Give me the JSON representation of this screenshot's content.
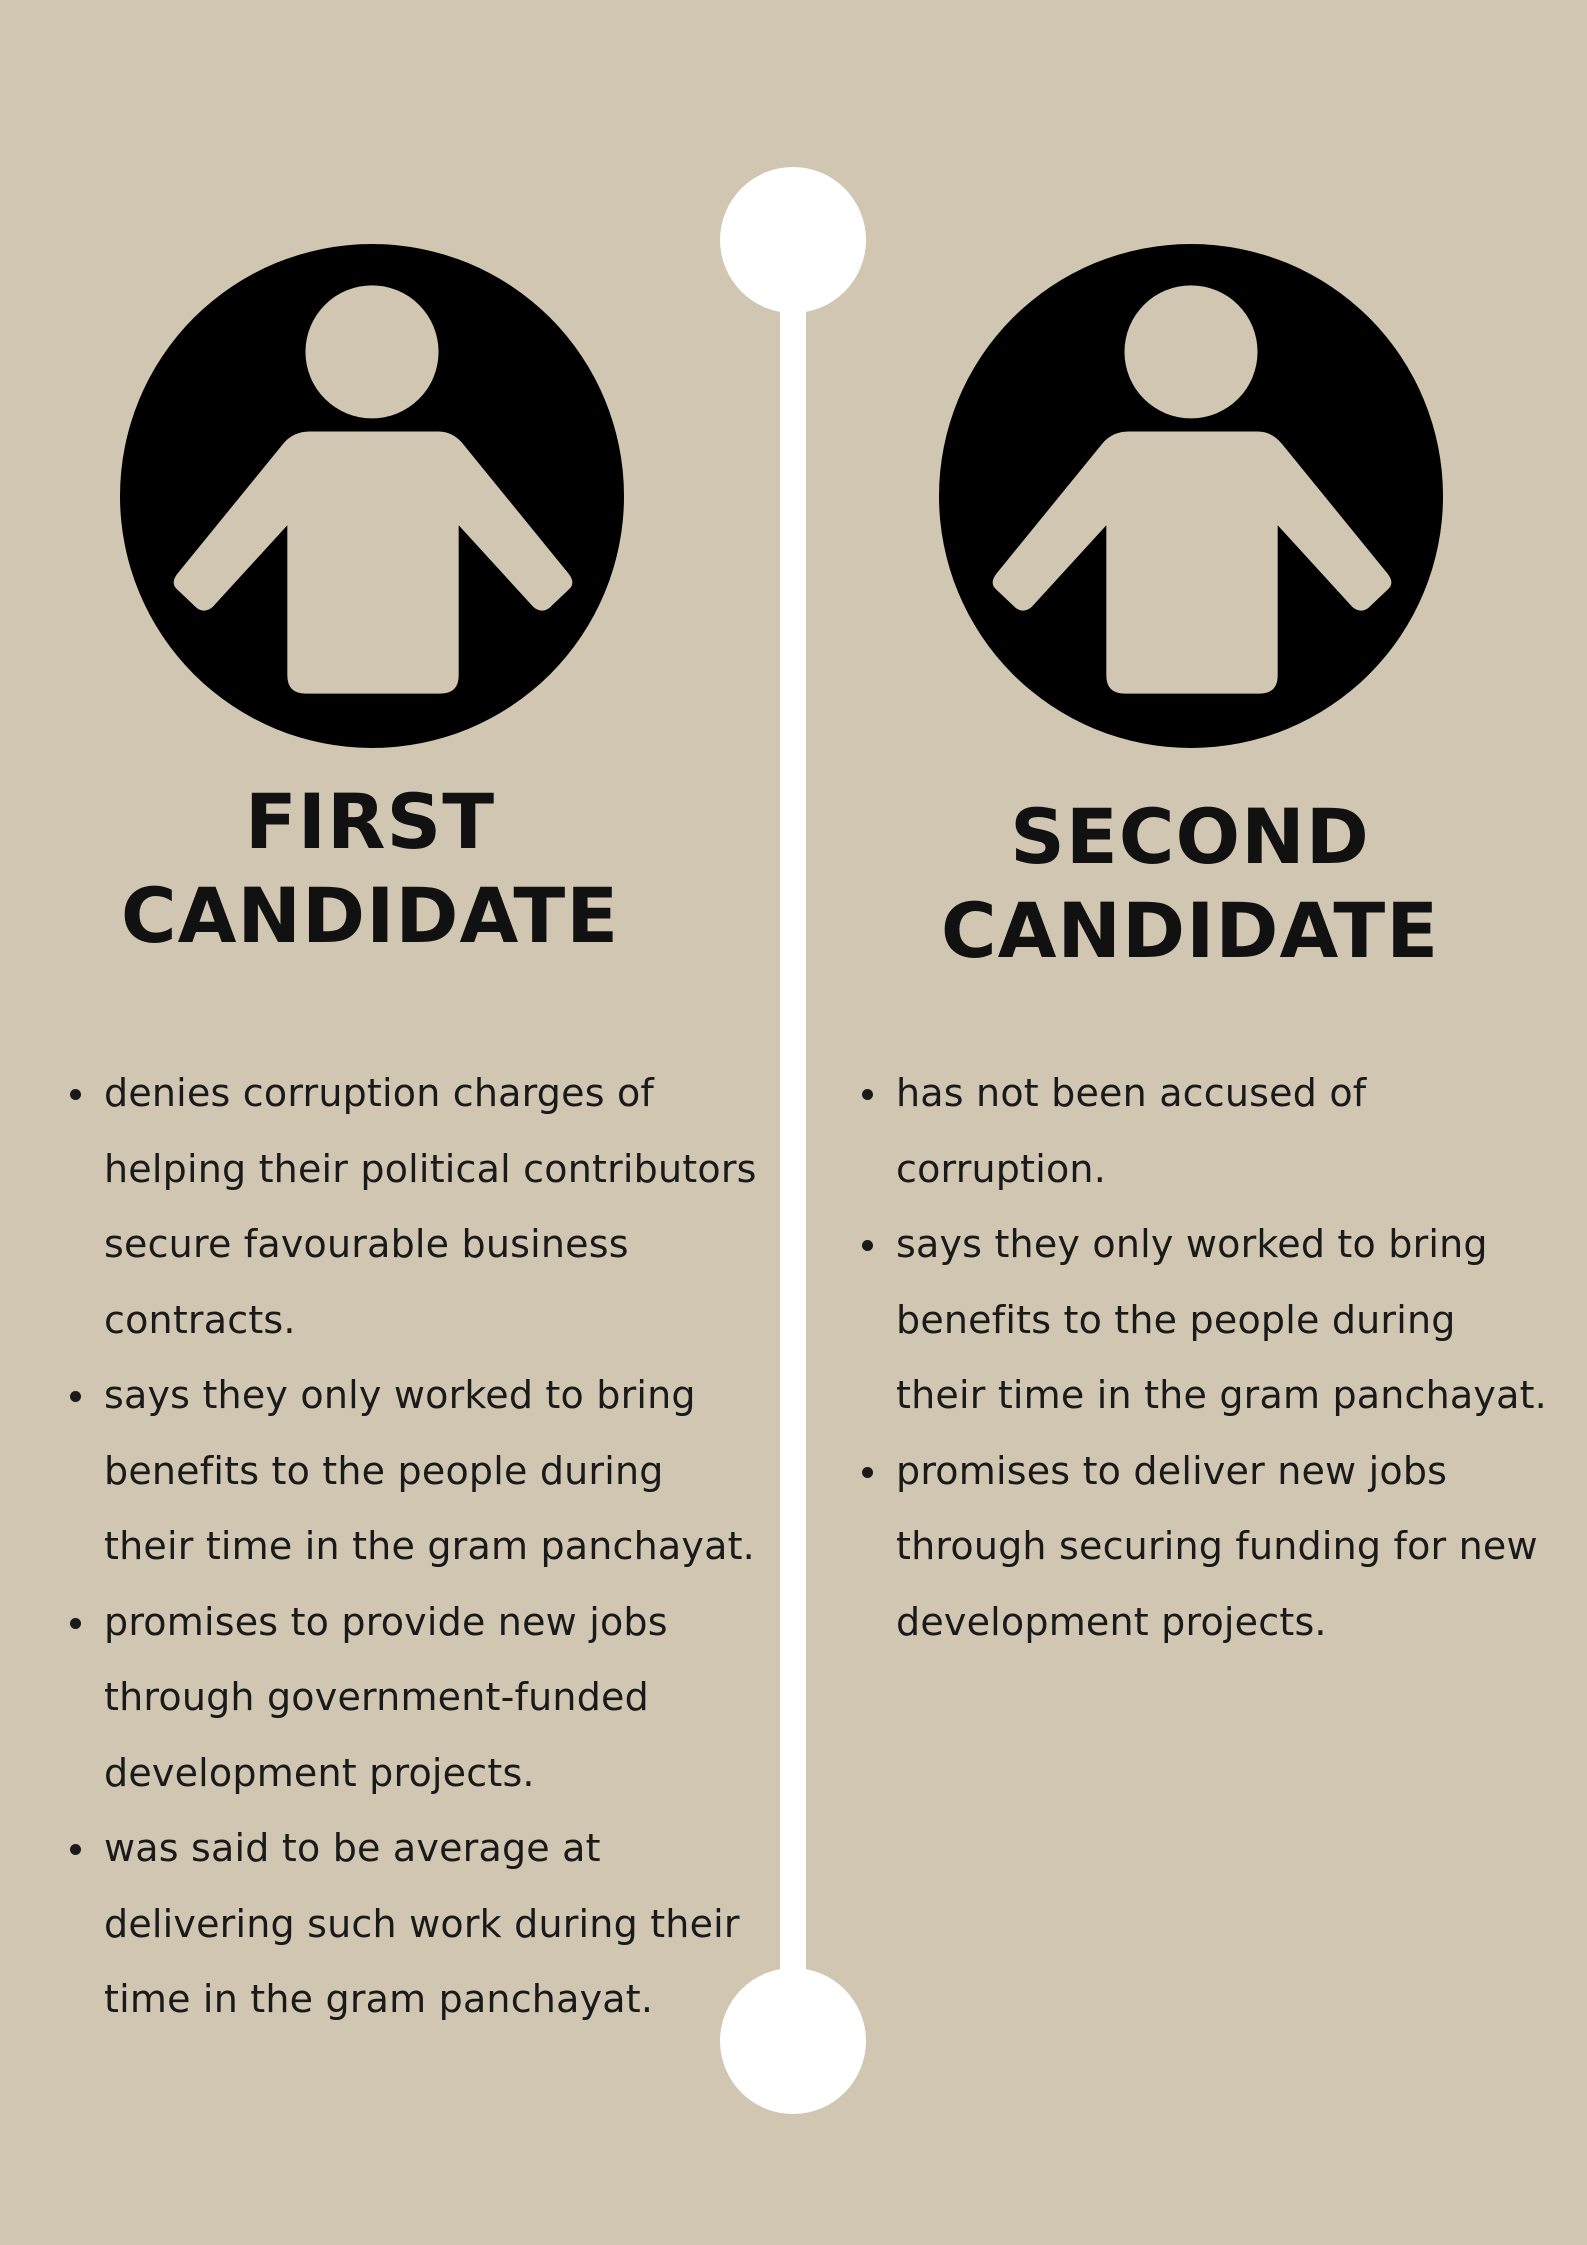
{
  "colors": {
    "background": "#d0c6b2",
    "divider": "#ffffff",
    "icon_fill": "#000000",
    "text": "#111111"
  },
  "candidates": [
    {
      "icon": "person-icon",
      "title_line1": "FIRST",
      "title_line2": "CANDIDATE",
      "points": [
        "denies corruption charges of\nhelping their political contributors\nsecure favourable business\ncontracts.",
        "says they only worked to bring\nbenefits to the people during\ntheir time in the gram panchayat.",
        "promises to provide new jobs\nthrough government-funded\ndevelopment projects.",
        "was said to be average at\ndelivering such work during their\ntime in the gram panchayat."
      ]
    },
    {
      "icon": "person-icon",
      "title_line1": "SECOND",
      "title_line2": "CANDIDATE",
      "points": [
        "has not been accused of\ncorruption.",
        "says they only worked to bring\nbenefits to the people during\ntheir time in the gram panchayat.",
        "promises to deliver new jobs\nthrough securing funding for new\ndevelopment projects."
      ]
    }
  ]
}
